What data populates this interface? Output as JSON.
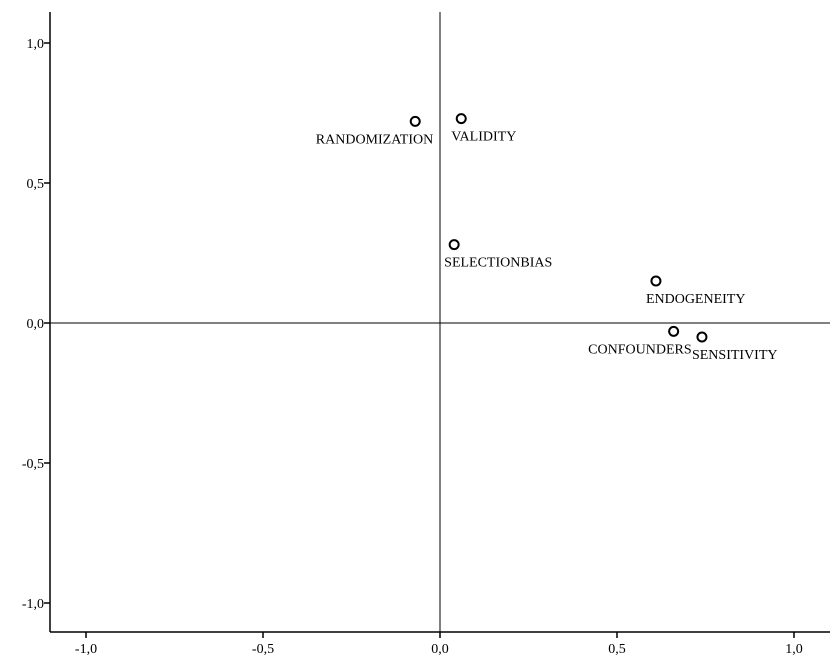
{
  "chart_data": {
    "type": "scatter",
    "title": "",
    "xlabel": "",
    "ylabel": "",
    "xlim": [
      -1.1,
      1.1
    ],
    "ylim": [
      -1.1,
      1.1
    ],
    "x_ticks": [
      {
        "value": -1.0,
        "label": "-1,0"
      },
      {
        "value": -0.5,
        "label": "-0,5"
      },
      {
        "value": 0.0,
        "label": "0,0"
      },
      {
        "value": 0.5,
        "label": "0,5"
      },
      {
        "value": 1.0,
        "label": "1,0"
      }
    ],
    "y_ticks": [
      {
        "value": 1.0,
        "label": "1,0"
      },
      {
        "value": 0.5,
        "label": "0,5"
      },
      {
        "value": 0.0,
        "label": "0,0"
      },
      {
        "value": -0.5,
        "label": "-0,5"
      },
      {
        "value": -1.0,
        "label": "-1,0"
      }
    ],
    "reference_lines": {
      "x": 0.0,
      "y": 0.0
    },
    "grid": false,
    "legend": "none",
    "marker": "open-circle",
    "points": [
      {
        "label": "RANDOMIZATION",
        "x": -0.07,
        "y": 0.72,
        "label_position": "below-left"
      },
      {
        "label": "VALIDITY",
        "x": 0.06,
        "y": 0.73,
        "label_position": "below"
      },
      {
        "label": "SELECTIONBIAS",
        "x": 0.04,
        "y": 0.28,
        "label_position": "below"
      },
      {
        "label": "ENDOGENEITY",
        "x": 0.61,
        "y": 0.15,
        "label_position": "below"
      },
      {
        "label": "CONFOUNDERS",
        "x": 0.66,
        "y": -0.03,
        "label_position": "below-left"
      },
      {
        "label": "SENSITIVITY",
        "x": 0.74,
        "y": -0.05,
        "label_position": "below"
      }
    ]
  }
}
